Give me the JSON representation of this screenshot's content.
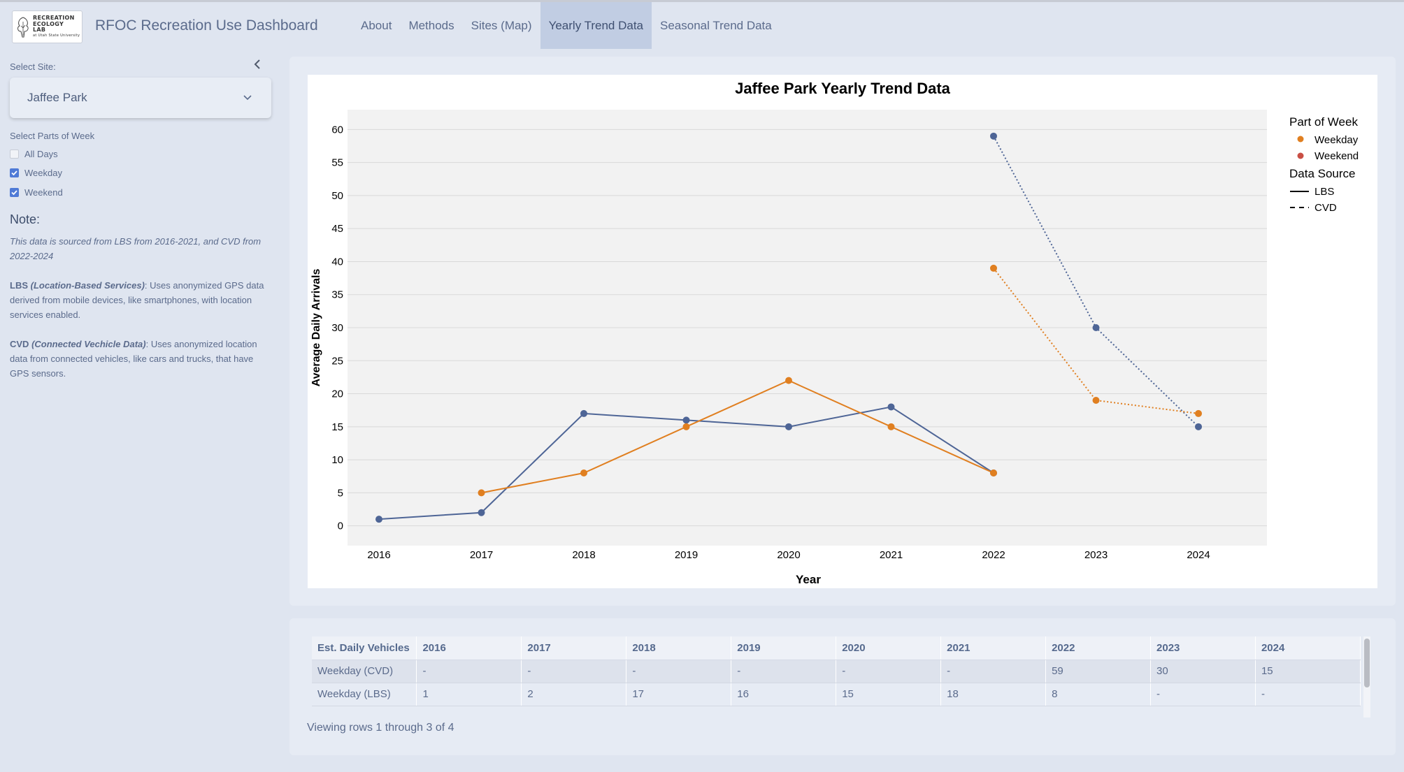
{
  "navbar": {
    "logo": {
      "line1": "RECREATION",
      "line2": "ECOLOGY",
      "line3": "LAB",
      "line4": "at Utah State University"
    },
    "title": "RFOC Recreation Use Dashboard",
    "tabs": [
      {
        "label": "About",
        "active": false
      },
      {
        "label": "Methods",
        "active": false
      },
      {
        "label": "Sites (Map)",
        "active": false
      },
      {
        "label": "Yearly Trend Data",
        "active": true
      },
      {
        "label": "Seasonal Trend Data",
        "active": false
      }
    ]
  },
  "sidebar": {
    "collapse_icon": "chevron-left-icon",
    "select_site_label": "Select Site:",
    "selected_site": "Jaffee Park",
    "parts_label": "Select Parts of Week",
    "checkboxes": [
      {
        "label": "All Days",
        "checked": false
      },
      {
        "label": "Weekday",
        "checked": true
      },
      {
        "label": "Weekend",
        "checked": true
      }
    ],
    "note_title": "Note:",
    "note_source": "This data is sourced from LBS from 2016-2021, and CVD from 2022-2024",
    "lbs_term": "LBS",
    "lbs_term_full": "(Location-Based Services)",
    "lbs_desc": ":  Uses anonymized GPS data derived from mobile devices, like smartphones, with location services enabled.",
    "cvd_term": "CVD",
    "cvd_term_full": "(Connected Vechicle Data)",
    "cvd_desc": ": Uses anonymized location data from connected vehicles, like cars and trucks, that have GPS sensors."
  },
  "chart_data": {
    "type": "line",
    "title": "Jaffee Park Yearly Trend Data",
    "xlabel": "Year",
    "ylabel": "Average Daily Arrivals",
    "x": [
      2016,
      2017,
      2018,
      2019,
      2020,
      2021,
      2022,
      2023,
      2024
    ],
    "ylim": [
      -3,
      63
    ],
    "yticks": [
      0,
      5,
      10,
      15,
      20,
      25,
      30,
      35,
      40,
      45,
      50,
      55,
      60
    ],
    "grid": true,
    "legend_position": "right",
    "legend": {
      "part_title": "Part of Week",
      "parts": [
        {
          "name": "Weekday",
          "color": "#e07f20"
        },
        {
          "name": "Weekend",
          "color": "#c94f45"
        }
      ],
      "source_title": "Data Source",
      "sources": [
        {
          "name": "LBS",
          "dash": "solid"
        },
        {
          "name": "CVD",
          "dash": "dashed"
        }
      ]
    },
    "series": [
      {
        "color": "#4e6596",
        "dash": "solid",
        "points": [
          [
            2016,
            1
          ],
          [
            2017,
            2
          ],
          [
            2018,
            17
          ],
          [
            2019,
            16
          ],
          [
            2020,
            15
          ],
          [
            2021,
            18
          ],
          [
            2022,
            8
          ]
        ]
      },
      {
        "color": "#e07f20",
        "dash": "solid",
        "points": [
          [
            2017,
            5
          ],
          [
            2018,
            8
          ],
          [
            2019,
            15
          ],
          [
            2020,
            22
          ],
          [
            2021,
            15
          ],
          [
            2022,
            8
          ]
        ]
      },
      {
        "color": "#4e6596",
        "dash": "dotted",
        "points": [
          [
            2022,
            59
          ],
          [
            2023,
            30
          ],
          [
            2024,
            15
          ]
        ]
      },
      {
        "color": "#e07f20",
        "dash": "dotted",
        "points": [
          [
            2022,
            39
          ],
          [
            2023,
            19
          ],
          [
            2024,
            17
          ]
        ]
      }
    ]
  },
  "table": {
    "headers": [
      "Est. Daily Vehicles",
      "2016",
      "2017",
      "2018",
      "2019",
      "2020",
      "2021",
      "2022",
      "2023",
      "2024"
    ],
    "rows": [
      [
        "Weekday (CVD)",
        "-",
        "-",
        "-",
        "-",
        "-",
        "-",
        "59",
        "30",
        "15"
      ],
      [
        "Weekday (LBS)",
        "1",
        "2",
        "17",
        "16",
        "15",
        "18",
        "8",
        "-",
        "-"
      ]
    ],
    "info": "Viewing rows 1 through 3 of 4"
  }
}
